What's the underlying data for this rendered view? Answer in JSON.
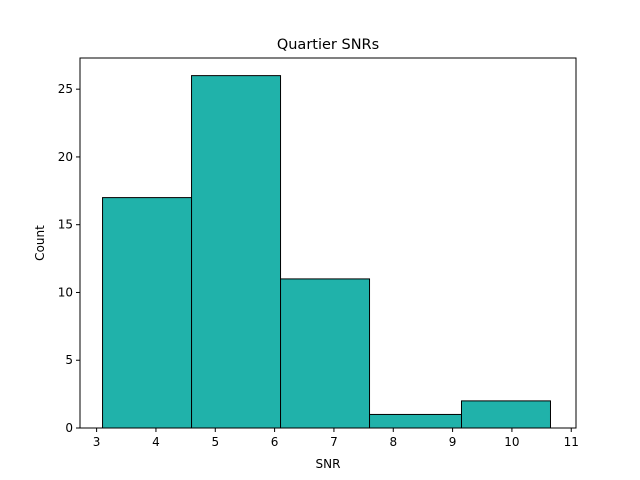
{
  "chart_data": {
    "type": "histogram",
    "title": "Quartier SNRs",
    "xlabel": "SNR",
    "ylabel": "Count",
    "xlim": [
      2.72,
      11.08
    ],
    "ylim": [
      0,
      27.3
    ],
    "xticks": [
      3,
      4,
      5,
      6,
      7,
      8,
      9,
      10,
      11
    ],
    "yticks": [
      0,
      5,
      10,
      15,
      20,
      25
    ],
    "bins": [
      {
        "x0": 3.1,
        "x1": 4.6,
        "count": 17
      },
      {
        "x0": 4.6,
        "x1": 6.1,
        "count": 26
      },
      {
        "x0": 6.1,
        "x1": 7.6,
        "count": 11
      },
      {
        "x0": 7.6,
        "x1": 9.15,
        "count": 1
      },
      {
        "x0": 9.15,
        "x1": 10.65,
        "count": 2
      }
    ],
    "bar_color": "#20b2aa",
    "edge_color": "#000000",
    "grid": false,
    "legend": "none"
  }
}
